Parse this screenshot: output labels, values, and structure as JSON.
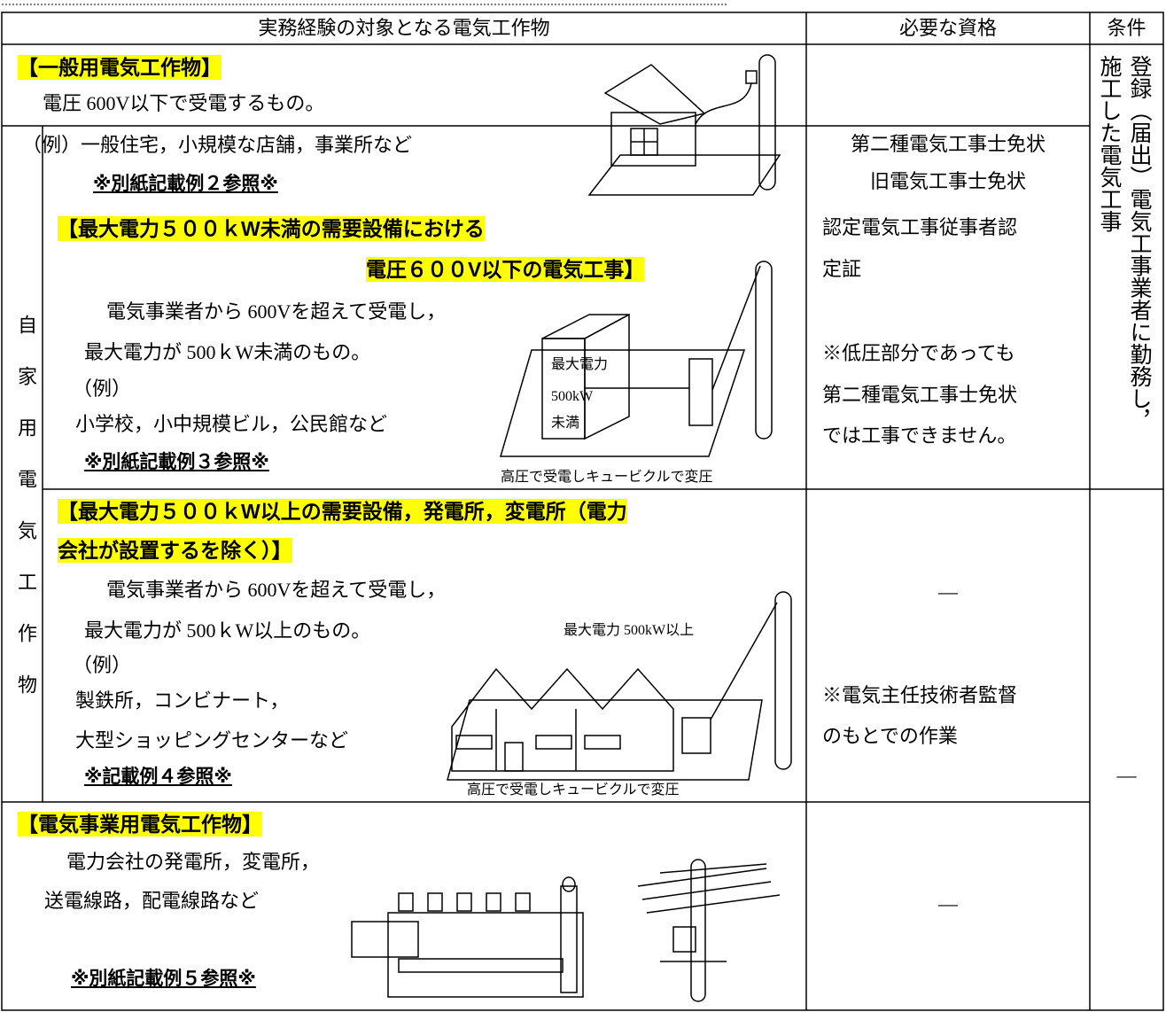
{
  "table": {
    "headers": [
      "実務経験の対象となる電気工作物",
      "必要な資格",
      "条件"
    ],
    "group_label": "自家用電気工作物",
    "condition_lines": [
      "登録（届出）電気工事業者に勤務し，",
      "施工した電気工事"
    ],
    "condition_dash": "―",
    "rows": [
      {
        "heading_lines": [
          "【一般用電気工作物】"
        ],
        "lines": [
          "電圧 600V以下で受電するもの。",
          "（例）一般住宅，小規模な店舗，事業所など"
        ],
        "reference": "※別紙記載例２参照※",
        "qualifications": [
          "第二種電気工事士免状",
          "旧電気工事士免状"
        ]
      },
      {
        "heading_lines": [
          "【最大電力５００ｋW未満の需要設備における",
          "電圧６００V以下の電気工事】"
        ],
        "lines": [
          "電気事業者から 600Vを超えて受電し，",
          "最大電力が 500ｋW未満のもの。",
          "（例）",
          "小学校，小中規模ビル，公民館など"
        ],
        "reference": "※別紙記載例３参照※",
        "figure_labels": [
          "最大電力",
          "500kW",
          "未満"
        ],
        "caption": "高圧で受電しキュービクルで変圧",
        "qualifications": [
          "認定電気工事従事者認",
          "定証",
          "※低圧部分であっても",
          "第二種電気工事士免状",
          "では工事できません。"
        ]
      },
      {
        "heading_lines": [
          "【最大電力５００ｋW以上の需要設備，発電所，変電所（電力",
          "会社が設置するを除く）】"
        ],
        "lines": [
          "電気事業者から 600Vを超えて受電し，",
          "最大電力が 500ｋW以上のもの。",
          "（例）",
          "製鉄所，コンビナート，",
          "大型ショッピングセンターなど"
        ],
        "reference": "※記載例４参照※",
        "figure_labels": [
          "最大電力 500kW以上"
        ],
        "caption": "高圧で受電しキュービクルで変圧",
        "qualifications": [
          "―",
          "※電気主任技術者監督",
          "のもとでの作業"
        ]
      },
      {
        "heading_lines": [
          "【電気事業用電気工作物】"
        ],
        "lines": [
          "電力会社の発電所，変電所，",
          "送電線路，配電線路など"
        ],
        "reference": "※別紙記載例５参照※",
        "qualifications": [
          "―"
        ]
      }
    ]
  }
}
